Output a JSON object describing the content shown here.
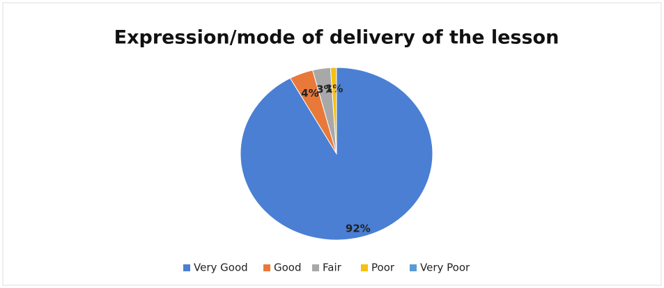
{
  "chart_data": {
    "type": "pie",
    "title": "Expression/mode of delivery of the lesson",
    "categories": [
      "Very Good",
      "Good",
      "Fair",
      "Poor",
      "Very Poor"
    ],
    "values": [
      92,
      4,
      3,
      1,
      0
    ],
    "value_labels": [
      "92%",
      "4%",
      "3%",
      "1%",
      null
    ],
    "colors": [
      "#4a7fd4",
      "#e8793a",
      "#a8a8a8",
      "#f5c010",
      "#5b9bd5"
    ],
    "legend": "bottom"
  }
}
